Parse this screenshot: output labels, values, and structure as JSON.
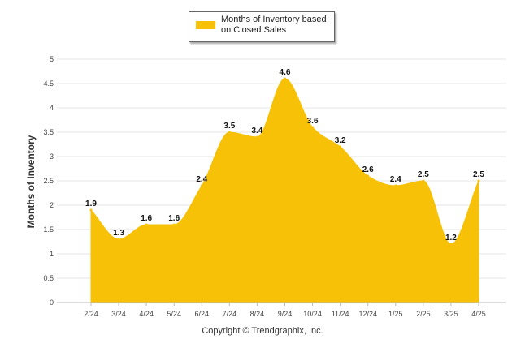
{
  "chart_data": {
    "type": "area",
    "x": [
      "2/24",
      "3/24",
      "4/24",
      "5/24",
      "6/24",
      "7/24",
      "8/24",
      "9/24",
      "10/24",
      "11/24",
      "12/24",
      "1/25",
      "2/25",
      "3/25",
      "4/25"
    ],
    "series": [
      {
        "name": "Months of Inventory based on Closed Sales",
        "values": [
          1.9,
          1.3,
          1.6,
          1.6,
          2.4,
          3.5,
          3.4,
          4.6,
          3.6,
          3.2,
          2.6,
          2.4,
          2.5,
          1.2,
          2.5
        ]
      }
    ],
    "data_labels": [
      "1.9",
      "1.3",
      "1.6",
      "1.6",
      "2.4",
      "3.5",
      "3.4",
      "4.6",
      "3.6",
      "3.2",
      "2.6",
      "2.4",
      "2.5",
      "1.2",
      "2.5"
    ],
    "ylabel": "Months of Inventory",
    "ylim": [
      0,
      5
    ],
    "yticks": [
      "0",
      "0.5",
      "1",
      "1.5",
      "2",
      "2.5",
      "3",
      "3.5",
      "4",
      "4.5",
      "5"
    ],
    "grid": true,
    "legend_position": "top-center",
    "color": "#F6C106"
  },
  "legend": {
    "label": "Months of Inventory based on Closed Sales"
  },
  "footer": {
    "copyright": "Copyright © Trendgraphix, Inc."
  }
}
